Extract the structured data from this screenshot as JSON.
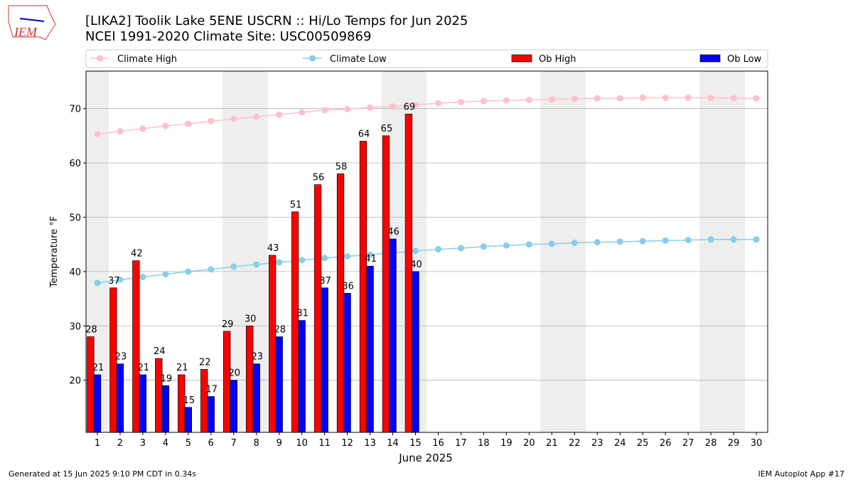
{
  "chart_data": {
    "type": "bar_line",
    "title": "[LIKA2] Toolik Lake 5ENE USCRN :: Hi/Lo Temps for Jun 2025",
    "subtitle": "NCEI 1991-2020 Climate Site: USC00509869",
    "xlabel": "June 2025",
    "ylabel": "Temperature °F",
    "footer_left": "Generated at 15 Jun 2025 9:10 PM CDT in 0.34s",
    "footer_right": "IEM Autoplot App #17",
    "logo_text": "IEM",
    "x": [
      1,
      2,
      3,
      4,
      5,
      6,
      7,
      8,
      9,
      10,
      11,
      12,
      13,
      14,
      15,
      16,
      17,
      18,
      19,
      20,
      21,
      22,
      23,
      24,
      25,
      26,
      27,
      28,
      29,
      30
    ],
    "xlim": [
      0.5,
      30.5
    ],
    "xticks": [
      1,
      2,
      3,
      4,
      5,
      6,
      7,
      8,
      9,
      10,
      11,
      12,
      13,
      14,
      15,
      16,
      17,
      18,
      19,
      20,
      21,
      22,
      23,
      24,
      25,
      26,
      27,
      28,
      29,
      30
    ],
    "ylim": [
      10.4,
      76.9
    ],
    "yticks": [
      20,
      30,
      40,
      50,
      60,
      70
    ],
    "grid": true,
    "shaded_spans": [
      [
        0.5,
        1.5
      ],
      [
        6.5,
        8.5
      ],
      [
        13.5,
        15.5
      ],
      [
        20.5,
        22.5
      ],
      [
        27.5,
        29.5
      ]
    ],
    "shade_color": "#eeeeee",
    "series": [
      {
        "name": "Climate High",
        "kind": "line",
        "color": "#ffc0cb",
        "values": [
          65.3,
          65.8,
          66.3,
          66.8,
          67.2,
          67.7,
          68.1,
          68.5,
          68.9,
          69.3,
          69.7,
          69.9,
          70.2,
          70.4,
          70.7,
          71.0,
          71.2,
          71.4,
          71.5,
          71.6,
          71.7,
          71.8,
          71.9,
          71.9,
          72.0,
          72.0,
          72.0,
          72.0,
          71.9,
          71.9
        ]
      },
      {
        "name": "Climate Low",
        "kind": "line",
        "color": "#87ceeb",
        "values": [
          37.9,
          38.5,
          39.0,
          39.5,
          40.0,
          40.4,
          40.9,
          41.3,
          41.7,
          42.1,
          42.5,
          42.8,
          43.1,
          43.4,
          43.8,
          44.1,
          44.3,
          44.6,
          44.8,
          45.0,
          45.1,
          45.3,
          45.4,
          45.5,
          45.6,
          45.7,
          45.8,
          45.9,
          45.9,
          45.9
        ]
      },
      {
        "name": "Ob High",
        "kind": "bar",
        "color": "#ff0000",
        "values": [
          28,
          37,
          42,
          24,
          21,
          22,
          29,
          30,
          43,
          51,
          56,
          58,
          64,
          65,
          69,
          null,
          null,
          null,
          null,
          null,
          null,
          null,
          null,
          null,
          null,
          null,
          null,
          null,
          null,
          null
        ]
      },
      {
        "name": "Ob Low",
        "kind": "bar",
        "color": "#0000ff",
        "values": [
          21,
          23,
          21,
          19,
          15,
          17,
          20,
          23,
          28,
          31,
          37,
          36,
          41,
          46,
          40,
          null,
          null,
          null,
          null,
          null,
          null,
          null,
          null,
          null,
          null,
          null,
          null,
          null,
          null,
          null
        ]
      }
    ]
  }
}
